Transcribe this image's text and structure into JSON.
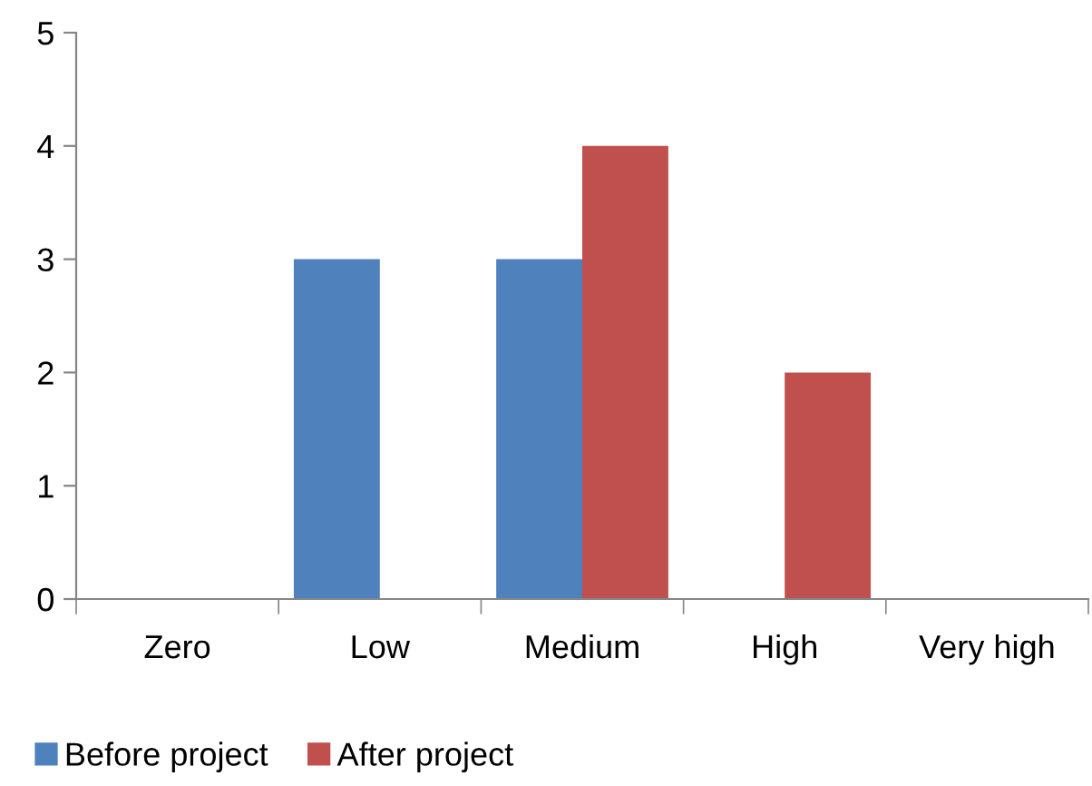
{
  "chart_data": {
    "type": "bar",
    "categories": [
      "Zero",
      "Low",
      "Medium",
      "High",
      "Very high"
    ],
    "series": [
      {
        "name": "Before project",
        "color": "#4f81bd",
        "values": [
          0,
          3,
          3,
          0,
          0
        ]
      },
      {
        "name": "After project",
        "color": "#c0504d",
        "values": [
          0,
          0,
          4,
          2,
          0
        ]
      }
    ],
    "ylim": [
      0,
      5
    ],
    "yticks": [
      0,
      1,
      2,
      3,
      4,
      5
    ],
    "grid": false,
    "legend": "bottom"
  }
}
